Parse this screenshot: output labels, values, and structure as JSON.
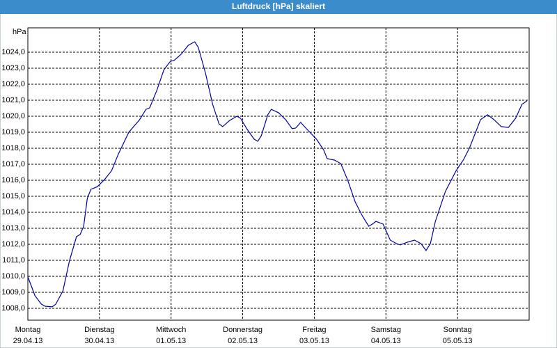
{
  "chart_data": {
    "type": "line",
    "title": "Luftdruck [hPa] skaliert",
    "y_label": "hPa",
    "xlim": [
      0,
      7
    ],
    "ylim": [
      1007.26,
      1025.52
    ],
    "xticks": [
      {
        "value": 0,
        "label": "Montag",
        "date": "29.04.13"
      },
      {
        "value": 1,
        "label": "Dienstag",
        "date": "30.04.13"
      },
      {
        "value": 2,
        "label": "Mittwoch",
        "date": "01.05.13"
      },
      {
        "value": 3,
        "label": "Donnerstag",
        "date": "02.05.13"
      },
      {
        "value": 4,
        "label": "Freitag",
        "date": "03.05.13"
      },
      {
        "value": 5,
        "label": "Samstag",
        "date": "04.05.13"
      },
      {
        "value": 6,
        "label": "Sonntag",
        "date": "05.05.13"
      }
    ],
    "yticks": [
      {
        "value": 1008,
        "label": "1008,0"
      },
      {
        "value": 1009,
        "label": "1009,0"
      },
      {
        "value": 1010,
        "label": "1010,0"
      },
      {
        "value": 1011,
        "label": "1011,0"
      },
      {
        "value": 1012,
        "label": "1012,0"
      },
      {
        "value": 1013,
        "label": "1013,0"
      },
      {
        "value": 1014,
        "label": "1014,0"
      },
      {
        "value": 1015,
        "label": "1015,0"
      },
      {
        "value": 1016,
        "label": "1016,0"
      },
      {
        "value": 1017,
        "label": "1017,0"
      },
      {
        "value": 1018,
        "label": "1018,0"
      },
      {
        "value": 1019,
        "label": "1019,0"
      },
      {
        "value": 1020,
        "label": "1020,0"
      },
      {
        "value": 1021,
        "label": "1021,0"
      },
      {
        "value": 1022,
        "label": "1022,0"
      },
      {
        "value": 1023,
        "label": "1023,0"
      },
      {
        "value": 1024,
        "label": "1024,0"
      }
    ],
    "grid": true,
    "color": "#0000a0",
    "x": [
      0,
      0.1,
      0.19,
      0.24,
      0.34,
      0.39,
      0.49,
      0.58,
      0.68,
      0.73,
      0.78,
      0.83,
      0.88,
      0.97,
      1.07,
      1.17,
      1.26,
      1.41,
      1.56,
      1.65,
      1.7,
      1.8,
      1.9,
      1.99,
      2.04,
      2.14,
      2.24,
      2.33,
      2.38,
      2.48,
      2.58,
      2.67,
      2.72,
      2.82,
      2.92,
      2.97,
      3.06,
      3.16,
      3.21,
      3.26,
      3.35,
      3.4,
      3.5,
      3.6,
      3.69,
      3.74,
      3.81,
      3.89,
      4.03,
      4.13,
      4.18,
      4.28,
      4.37,
      4.47,
      4.57,
      4.67,
      4.76,
      4.81,
      4.86,
      4.96,
      5.06,
      5.15,
      5.2,
      5.3,
      5.4,
      5.49,
      5.56,
      5.62,
      5.69,
      5.83,
      5.98,
      6.08,
      6.17,
      6.32,
      6.42,
      6.51,
      6.61,
      6.71,
      6.81,
      6.9,
      6.97
    ],
    "values": [
      1009.96,
      1008.78,
      1008.26,
      1008.13,
      1008.09,
      1008.26,
      1009.09,
      1010.96,
      1012.48,
      1012.61,
      1013.13,
      1014.87,
      1015.43,
      1015.6,
      1016.04,
      1016.6,
      1017.6,
      1019.0,
      1019.78,
      1020.43,
      1020.52,
      1021.6,
      1022.9,
      1023.43,
      1023.48,
      1023.87,
      1024.43,
      1024.65,
      1024.3,
      1022.7,
      1020.74,
      1019.52,
      1019.35,
      1019.74,
      1020.0,
      1019.87,
      1019.2,
      1018.57,
      1018.43,
      1018.78,
      1020.09,
      1020.43,
      1020.22,
      1019.78,
      1019.22,
      1019.26,
      1019.61,
      1019.22,
      1018.57,
      1017.9,
      1017.35,
      1017.26,
      1017.04,
      1015.96,
      1014.65,
      1013.78,
      1013.13,
      1013.26,
      1013.43,
      1013.26,
      1012.26,
      1012.04,
      1011.96,
      1012.13,
      1012.26,
      1012.04,
      1011.61,
      1012.04,
      1013.43,
      1015.3,
      1016.6,
      1017.26,
      1018.04,
      1019.78,
      1020.09,
      1019.78,
      1019.35,
      1019.3,
      1019.87,
      1020.74,
      1020.96
    ]
  }
}
